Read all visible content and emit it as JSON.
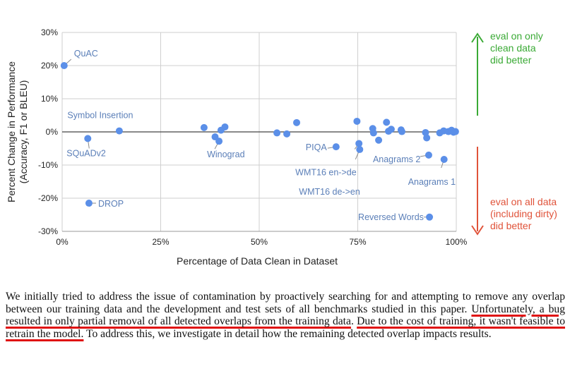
{
  "chart_data": {
    "type": "scatter",
    "xlabel": "Percentage of Data Clean in Dataset",
    "ylabel_lines": [
      "Percent Change in Performance",
      "(Accuracy, F1 or BLEU)"
    ],
    "xlim": [
      0,
      100
    ],
    "ylim": [
      -30,
      30
    ],
    "x_ticks": [
      "0%",
      "25%",
      "50%",
      "75%",
      "100%"
    ],
    "y_ticks": [
      "30%",
      "20%",
      "10%",
      "0%",
      "-10%",
      "-20%",
      "-30%"
    ],
    "grid": true,
    "zero_line": true,
    "point_color": "#5b8fe8",
    "points": [
      {
        "x": 0.5,
        "y": 20
      },
      {
        "x": 6.5,
        "y": -2
      },
      {
        "x": 6.8,
        "y": -21.5
      },
      {
        "x": 14.5,
        "y": 0.3
      },
      {
        "x": 36,
        "y": 1.3
      },
      {
        "x": 38.8,
        "y": -1.5
      },
      {
        "x": 39.8,
        "y": -2.8
      },
      {
        "x": 40.3,
        "y": 0.5
      },
      {
        "x": 41.3,
        "y": 1.5
      },
      {
        "x": 54.5,
        "y": -0.3
      },
      {
        "x": 57,
        "y": -0.6
      },
      {
        "x": 59.5,
        "y": 2.8
      },
      {
        "x": 69.5,
        "y": -4.5
      },
      {
        "x": 74.8,
        "y": 3.2
      },
      {
        "x": 75.3,
        "y": -3.5
      },
      {
        "x": 75.5,
        "y": -5.3
      },
      {
        "x": 78.8,
        "y": 1.0
      },
      {
        "x": 79,
        "y": -0.3
      },
      {
        "x": 80.3,
        "y": -2.5
      },
      {
        "x": 82.3,
        "y": 2.9
      },
      {
        "x": 82.8,
        "y": 0.2
      },
      {
        "x": 83.5,
        "y": 0.8
      },
      {
        "x": 86,
        "y": 0.6
      },
      {
        "x": 86.2,
        "y": 0.1
      },
      {
        "x": 92.2,
        "y": -0.2
      },
      {
        "x": 92.5,
        "y": -1.8
      },
      {
        "x": 93,
        "y": -7
      },
      {
        "x": 93.2,
        "y": -25.7
      },
      {
        "x": 95.8,
        "y": -0.3
      },
      {
        "x": 96.8,
        "y": 0.3
      },
      {
        "x": 96.9,
        "y": -8.3
      },
      {
        "x": 98,
        "y": 0.1
      },
      {
        "x": 98.8,
        "y": 0.5
      },
      {
        "x": 99.3,
        "y": -0.1
      },
      {
        "x": 99.8,
        "y": 0.1
      }
    ],
    "annotations": [
      {
        "text": "QuAC",
        "x": 0.5,
        "y": 20
      },
      {
        "text": "Symbol Insertion",
        "x": 14.5,
        "y": 0.3
      },
      {
        "text": "SQuADv2",
        "x": 6.5,
        "y": -2
      },
      {
        "text": "DROP",
        "x": 6.8,
        "y": -21.5
      },
      {
        "text": "Winograd",
        "x": 39.8,
        "y": -2.8
      },
      {
        "text": "PIQA",
        "x": 69.5,
        "y": -4.5
      },
      {
        "text": "WMT16 en->de",
        "x": 75.3,
        "y": -3.5
      },
      {
        "text": "WMT16 de->en",
        "x": 75.5,
        "y": -5.3
      },
      {
        "text": "Anagrams 2",
        "x": 93,
        "y": -7
      },
      {
        "text": "Anagrams 1",
        "x": 96.9,
        "y": -8.3
      },
      {
        "text": "Reversed Words",
        "x": 93.2,
        "y": -25.7
      }
    ],
    "side_notes": {
      "top": {
        "lines": [
          "eval on only",
          "clean data",
          "did better"
        ],
        "color": "#3aaa35"
      },
      "bottom": {
        "lines": [
          "eval on all data",
          "(including dirty)",
          "did better"
        ],
        "color": "#e0533a"
      }
    }
  },
  "paragraph": {
    "part1": "We initially tried to address the issue of contamination by proactively searching for and attempting to remove any overlap between our training data and the development and test sets of all benchmarks studied in this paper. ",
    "highlight1": "Unfortunately, a bug resulted in only partial removal of all detected overlaps from the training data",
    "part2": ". ",
    "highlight2": "Due to the cost of training, it wasn't feasible to retrain the model.",
    "part3": " To address this, we investigate in detail how the remaining detected overlap impacts results."
  }
}
